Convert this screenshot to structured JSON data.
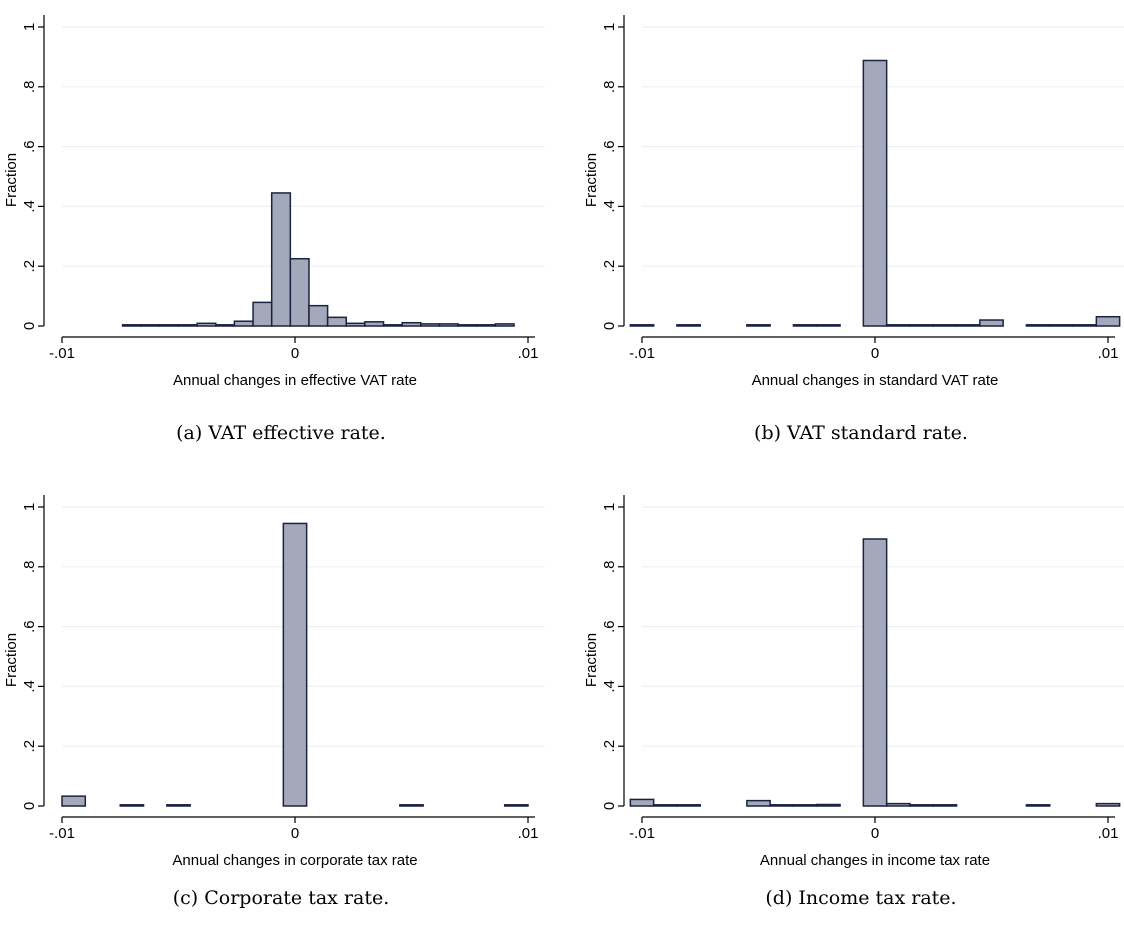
{
  "chart_data": [
    {
      "type": "bar",
      "panel_caption": "(a) VAT effective rate.",
      "xlabel": "Annual changes in effective VAT rate",
      "ylabel": "Fraction",
      "xlim": [
        -0.01,
        0.01
      ],
      "ylim": [
        0,
        1
      ],
      "xticks": [
        "-.01",
        "0",
        ".01"
      ],
      "yticks": [
        "0",
        ".2",
        ".4",
        ".6",
        ".8",
        "1"
      ],
      "grid": true,
      "bin_width": 0.0008,
      "bins": [
        {
          "x": -0.007,
          "y": 0.002
        },
        {
          "x": -0.0062,
          "y": 0.002
        },
        {
          "x": -0.0054,
          "y": 0.004
        },
        {
          "x": -0.0046,
          "y": 0.004
        },
        {
          "x": -0.0038,
          "y": 0.009
        },
        {
          "x": -0.003,
          "y": 0.004
        },
        {
          "x": -0.0022,
          "y": 0.016
        },
        {
          "x": -0.0014,
          "y": 0.079
        },
        {
          "x": -0.0006,
          "y": 0.445
        },
        {
          "x": 0.0002,
          "y": 0.225
        },
        {
          "x": 0.001,
          "y": 0.068
        },
        {
          "x": 0.0018,
          "y": 0.029
        },
        {
          "x": 0.0026,
          "y": 0.009
        },
        {
          "x": 0.0034,
          "y": 0.014
        },
        {
          "x": 0.0042,
          "y": 0.004
        },
        {
          "x": 0.005,
          "y": 0.011
        },
        {
          "x": 0.0058,
          "y": 0.007
        },
        {
          "x": 0.0066,
          "y": 0.007
        },
        {
          "x": 0.0074,
          "y": 0.002
        },
        {
          "x": 0.0082,
          "y": 0.004
        },
        {
          "x": 0.009,
          "y": 0.007
        }
      ]
    },
    {
      "type": "bar",
      "panel_caption": "(b) VAT standard rate.",
      "xlabel": "Annual changes in standard VAT rate",
      "ylabel": "Fraction",
      "xlim": [
        -0.01,
        0.01
      ],
      "ylim": [
        0,
        1
      ],
      "xticks": [
        "-.01",
        "0",
        ".01"
      ],
      "yticks": [
        "0",
        ".2",
        ".4",
        ".6",
        ".8",
        "1"
      ],
      "grid": true,
      "bin_width": 0.001,
      "bins": [
        {
          "x": -0.01,
          "y": 0.003
        },
        {
          "x": -0.008,
          "y": 0.002
        },
        {
          "x": -0.005,
          "y": 0.003
        },
        {
          "x": -0.003,
          "y": 0.002
        },
        {
          "x": -0.002,
          "y": 0.002
        },
        {
          "x": 0.0,
          "y": 0.888
        },
        {
          "x": 0.001,
          "y": 0.002
        },
        {
          "x": 0.002,
          "y": 0.002
        },
        {
          "x": 0.003,
          "y": 0.003
        },
        {
          "x": 0.004,
          "y": 0.003
        },
        {
          "x": 0.005,
          "y": 0.02
        },
        {
          "x": 0.007,
          "y": 0.002
        },
        {
          "x": 0.008,
          "y": 0.002
        },
        {
          "x": 0.009,
          "y": 0.004
        },
        {
          "x": 0.01,
          "y": 0.031
        }
      ]
    },
    {
      "type": "bar",
      "panel_caption": "(c) Corporate tax rate.",
      "xlabel": "Annual changes in corporate tax rate",
      "ylabel": "Fraction",
      "xlim": [
        -0.01,
        0.01
      ],
      "ylim": [
        0,
        1
      ],
      "xticks": [
        "-.01",
        "0",
        ".01"
      ],
      "yticks": [
        "0",
        ".2",
        ".4",
        ".6",
        ".8",
        "1"
      ],
      "grid": true,
      "bin_width": 0.001,
      "bins": [
        {
          "x": -0.0095,
          "y": 0.033
        },
        {
          "x": -0.007,
          "y": 0.003
        },
        {
          "x": -0.005,
          "y": 0.003
        },
        {
          "x": 0.0,
          "y": 0.945
        },
        {
          "x": 0.005,
          "y": 0.003
        },
        {
          "x": 0.0095,
          "y": 0.003
        }
      ]
    },
    {
      "type": "bar",
      "panel_caption": "(d) Income tax rate.",
      "xlabel": "Annual changes in income tax rate",
      "ylabel": "Fraction",
      "xlim": [
        -0.01,
        0.01
      ],
      "ylim": [
        0,
        1
      ],
      "xticks": [
        "-.01",
        "0",
        ".01"
      ],
      "yticks": [
        "0",
        ".2",
        ".4",
        ".6",
        ".8",
        "1"
      ],
      "grid": true,
      "bin_width": 0.001,
      "bins": [
        {
          "x": -0.01,
          "y": 0.022
        },
        {
          "x": -0.009,
          "y": 0.003
        },
        {
          "x": -0.008,
          "y": 0.003
        },
        {
          "x": -0.005,
          "y": 0.018
        },
        {
          "x": -0.004,
          "y": 0.003
        },
        {
          "x": -0.003,
          "y": 0.003
        },
        {
          "x": -0.002,
          "y": 0.005
        },
        {
          "x": 0.0,
          "y": 0.893
        },
        {
          "x": 0.001,
          "y": 0.008
        },
        {
          "x": 0.002,
          "y": 0.003
        },
        {
          "x": 0.003,
          "y": 0.003
        },
        {
          "x": 0.007,
          "y": 0.003
        },
        {
          "x": 0.01,
          "y": 0.008
        }
      ]
    }
  ],
  "colors": {
    "bar_fill": "#a3a8ba",
    "bar_stroke": "#1a2340",
    "grid": "#eaf0f3",
    "axis": "#000000"
  }
}
